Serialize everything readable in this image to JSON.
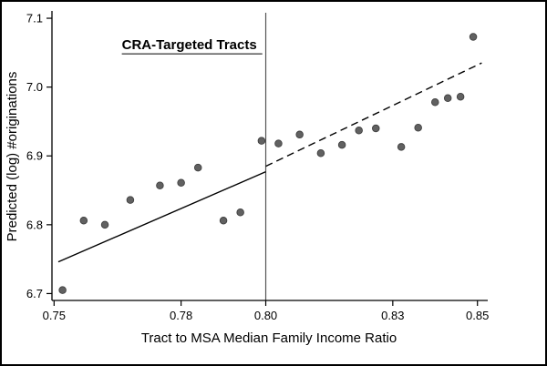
{
  "figure": {
    "border_color": "#000000",
    "background_color": "#ffffff"
  },
  "chart_data": {
    "type": "scatter",
    "title": "CRA-Targeted Tracts",
    "xlabel": "Tract to MSA Median Family Income Ratio",
    "ylabel": "Predicted (log) #originations",
    "xlim": [
      0.7495,
      0.852
    ],
    "ylim": [
      6.69,
      7.108
    ],
    "x_ticks": [
      0.75,
      0.78,
      0.8,
      0.83,
      0.85
    ],
    "x_tick_labels": [
      "0.75",
      "0.78",
      "0.80",
      "0.83",
      "0.85"
    ],
    "y_ticks": [
      6.7,
      6.8,
      6.9,
      7.0,
      7.1
    ],
    "y_tick_labels": [
      "6.7",
      "6.8",
      "6.9",
      "7.0",
      "7.1"
    ],
    "grid": false,
    "legend": "none",
    "cutoff_x": 0.8,
    "points": [
      [
        0.752,
        6.705
      ],
      [
        0.757,
        6.806
      ],
      [
        0.762,
        6.8
      ],
      [
        0.768,
        6.836
      ],
      [
        0.775,
        6.857
      ],
      [
        0.78,
        6.861
      ],
      [
        0.784,
        6.883
      ],
      [
        0.79,
        6.806
      ],
      [
        0.794,
        6.818
      ],
      [
        0.799,
        6.922
      ],
      [
        0.803,
        6.918
      ],
      [
        0.808,
        6.931
      ],
      [
        0.813,
        6.904
      ],
      [
        0.818,
        6.916
      ],
      [
        0.822,
        6.937
      ],
      [
        0.826,
        6.94
      ],
      [
        0.832,
        6.913
      ],
      [
        0.836,
        6.941
      ],
      [
        0.84,
        6.978
      ],
      [
        0.843,
        6.984
      ],
      [
        0.846,
        6.986
      ],
      [
        0.849,
        7.073
      ]
    ],
    "fit_lines": [
      {
        "name": "left-of-cutoff",
        "style": "solid",
        "x": [
          0.751,
          0.8
        ],
        "y": [
          6.746,
          6.877
        ]
      },
      {
        "name": "right-of-cutoff",
        "style": "dashed",
        "x": [
          0.8,
          0.851
        ],
        "y": [
          6.885,
          7.035
        ]
      }
    ],
    "point_color": "#616161",
    "point_edge_color": "#3f3f3f",
    "line_color": "#000000",
    "cutoff_line_color": "#555555",
    "axis_color": "#000000"
  }
}
